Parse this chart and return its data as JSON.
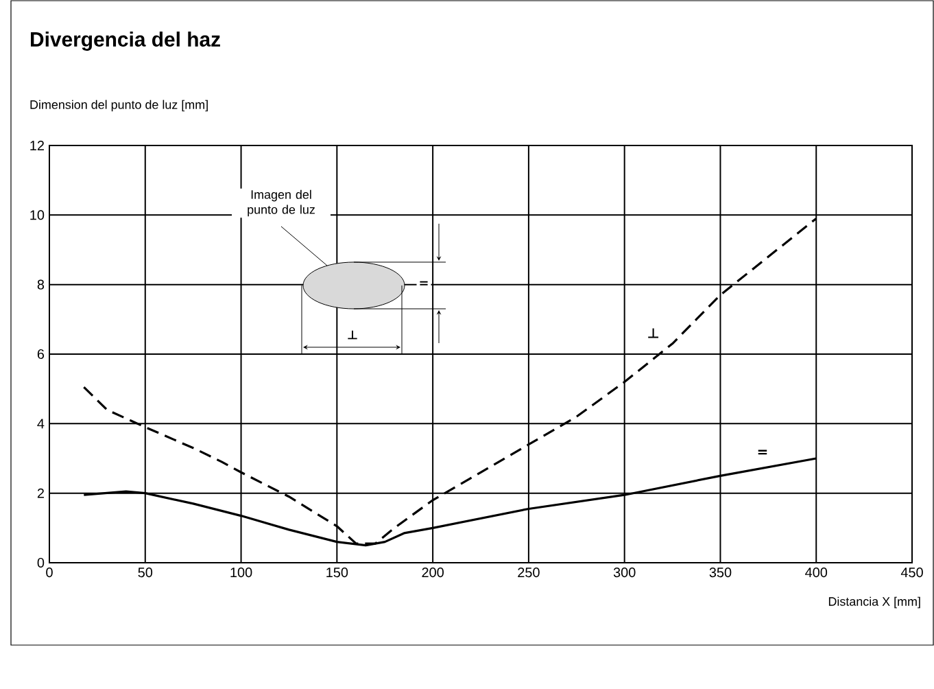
{
  "chart_data": {
    "type": "line",
    "title": "Divergencia del haz",
    "xlabel": "Distancia X [mm]",
    "ylabel": "Dimension del punto de luz [mm]",
    "xlim": [
      0,
      450
    ],
    "xticks": [
      0,
      50,
      100,
      150,
      200,
      250,
      300,
      350,
      400,
      450
    ],
    "ylim": [
      0,
      12
    ],
    "yticks": [
      0,
      2,
      4,
      6,
      8,
      10,
      12
    ],
    "grid": true,
    "annotations": [
      "Imagen del punto de luz",
      "=",
      "⊥"
    ],
    "series": [
      {
        "name": "⊥",
        "color": "#000000",
        "line_style": "dashed",
        "x": [
          18,
          30,
          50,
          75,
          90,
          100,
          125,
          150,
          160,
          170,
          180,
          200,
          225,
          250,
          275,
          300,
          325,
          350,
          375,
          400
        ],
        "values": [
          5.05,
          4.4,
          3.9,
          3.3,
          2.9,
          2.6,
          1.9,
          1.05,
          0.55,
          0.55,
          1.0,
          1.8,
          2.6,
          3.4,
          4.2,
          5.2,
          6.3,
          7.7,
          8.8,
          9.9
        ]
      },
      {
        "name": "=",
        "color": "#000000",
        "line_style": "solid",
        "x": [
          18,
          40,
          50,
          75,
          100,
          125,
          150,
          165,
          175,
          185,
          200,
          250,
          300,
          350,
          375,
          400
        ],
        "values": [
          1.95,
          2.05,
          2.0,
          1.7,
          1.35,
          0.95,
          0.6,
          0.5,
          0.6,
          0.85,
          1.0,
          1.55,
          1.95,
          2.5,
          2.75,
          3.0
        ]
      }
    ]
  }
}
